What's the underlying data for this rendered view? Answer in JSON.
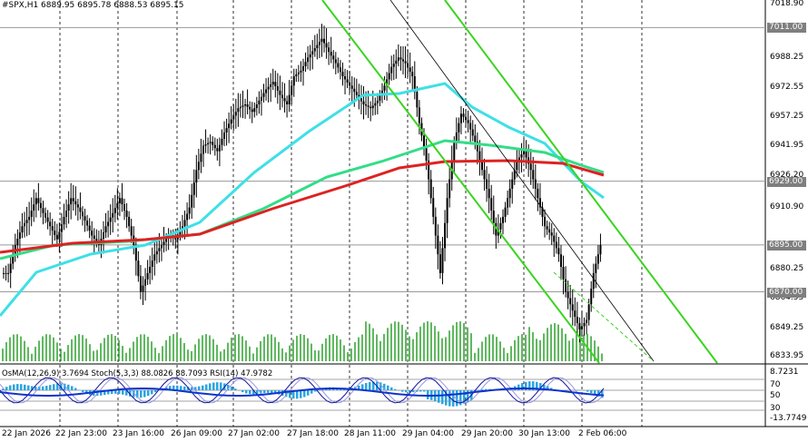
{
  "header": {
    "symbol_line": "#SPX,H1  6889.95 6895.78 6888.53 6895.15"
  },
  "indicator_line": "OsMA(12,26,9) 3.7694  Stoch(5,3,3) 88.0826 88.7093  RSI(14) 47.9782",
  "price_axis": {
    "ticks": [
      "7018.90",
      "7003.15",
      "6988.25",
      "6972.55",
      "6957.25",
      "6941.95",
      "6926.20",
      "6910.90",
      "6880.25",
      "6864.55",
      "6849.25",
      "6833.95"
    ],
    "tags": [
      {
        "label": "7011.00",
        "value": 7011.0
      },
      {
        "label": "6929.00",
        "value": 6929.0
      },
      {
        "label": "6895.00",
        "value": 6895.0
      },
      {
        "label": "6870.00",
        "value": 6870.0
      }
    ]
  },
  "oscillator_axis": {
    "top": "8.7231",
    "levels": [
      "70",
      "50",
      "30"
    ],
    "bottom": "-13.7749"
  },
  "time_axis": [
    "22 Jan 2026",
    "22 Jan 23:00",
    "23 Jan 16:00",
    "26 Jan 09:00",
    "27 Jan 02:00",
    "27 Jan 18:00",
    "28 Jan 11:00",
    "29 Jan 04:00",
    "29 Jan 20:00",
    "30 Jan 13:00",
    "2 Feb 06:00"
  ],
  "colors": {
    "background": "#ffffff",
    "candle": "#000000",
    "volume": "#2ca02c",
    "ma_fast": "#3ee0e6",
    "ma_mid": "#33dd88",
    "ma_slow": "#dd2222",
    "channel": "#39d41f",
    "histogram": "#2aa5e0",
    "macd_line": "#1133cc",
    "stoch_main": "#1111aa",
    "stoch_signal": "#9999dd"
  },
  "chart_data": {
    "type": "candlestick",
    "price_range": [
      6833.95,
      7018.9
    ],
    "close_path": [
      6880,
      6895,
      6905,
      6910,
      6920,
      6912,
      6905,
      6898,
      6910,
      6920,
      6915,
      6908,
      6900,
      6895,
      6905,
      6912,
      6920,
      6910,
      6895,
      6870,
      6880,
      6890,
      6895,
      6900,
      6898,
      6905,
      6915,
      6935,
      6948,
      6950,
      6945,
      6955,
      6962,
      6968,
      6970,
      6966,
      6972,
      6978,
      6982,
      6975,
      6970,
      6985,
      6988,
      6995,
      7000,
      7005,
      6998,
      6992,
      6985,
      6980,
      6975,
      6970,
      6968,
      6972,
      6980,
      6990,
      6995,
      6992,
      6985,
      6960,
      6940,
      6910,
      6880,
      6920,
      6950,
      6965,
      6960,
      6950,
      6935,
      6920,
      6900,
      6910,
      6925,
      6940,
      6945,
      6935,
      6920,
      6905,
      6900,
      6890,
      6870,
      6860,
      6850,
      6855,
      6880,
      6895
    ]
  }
}
